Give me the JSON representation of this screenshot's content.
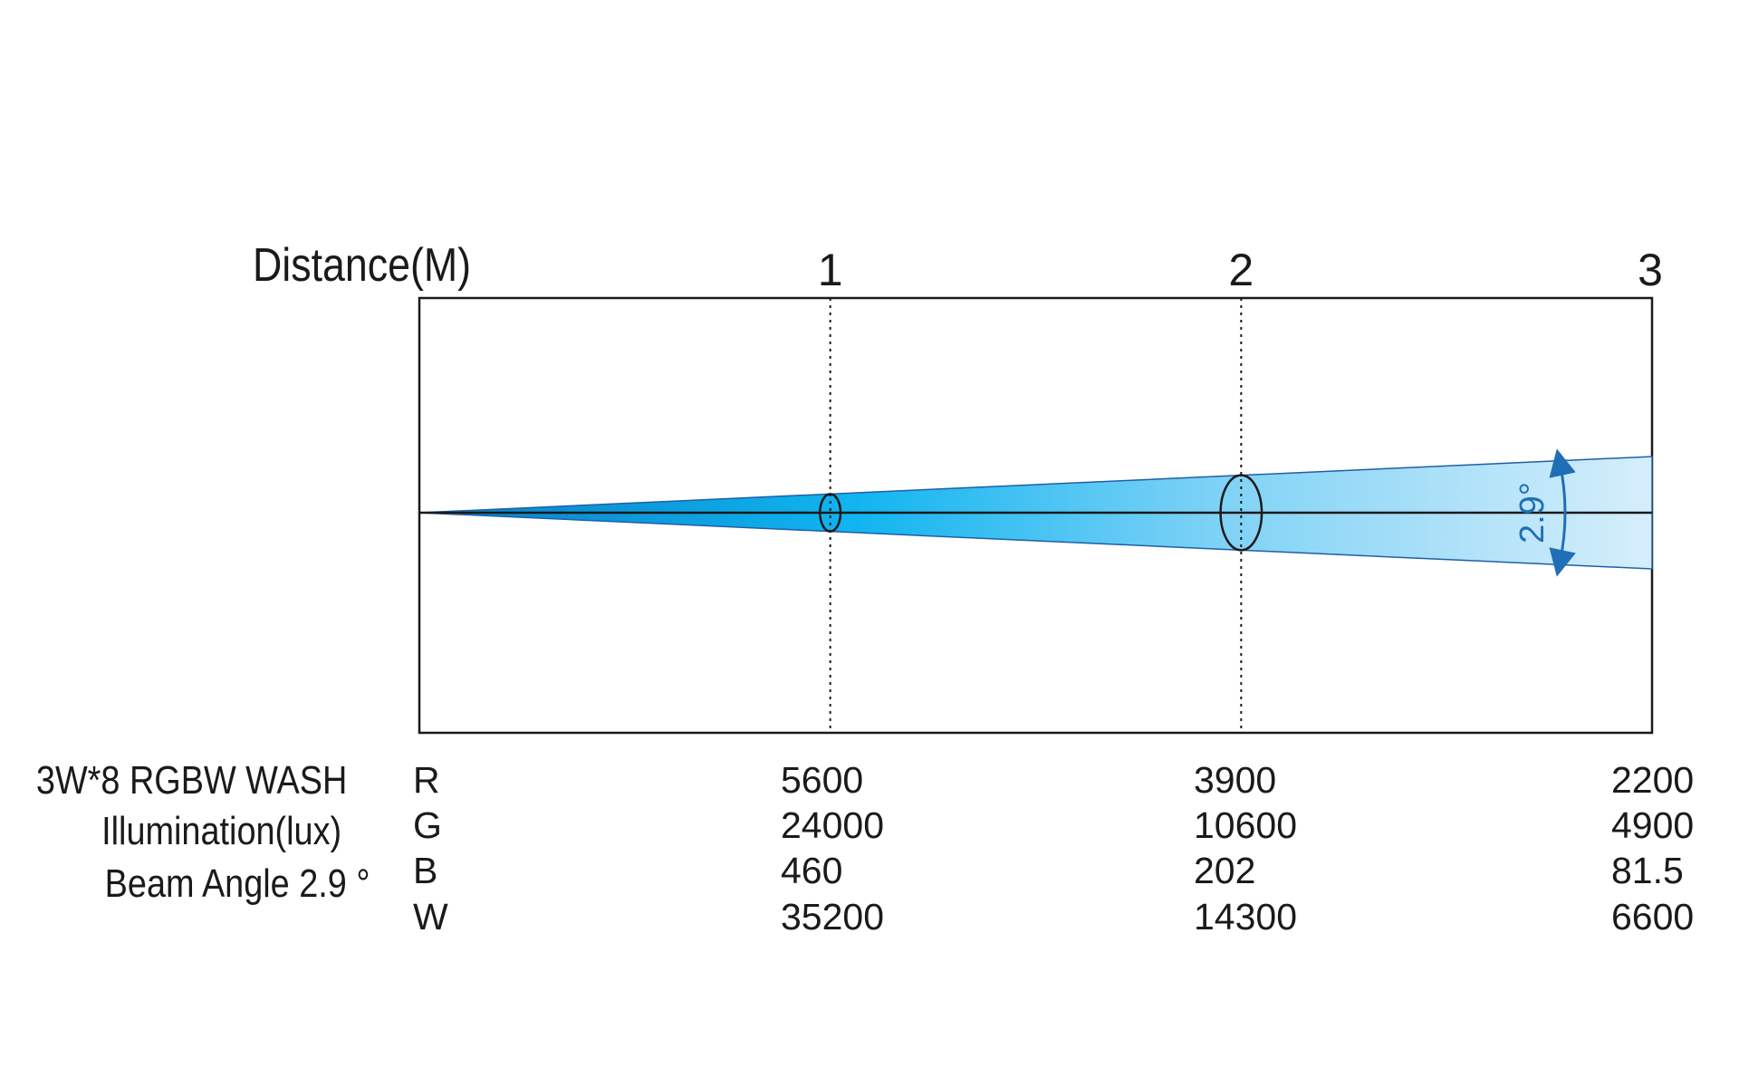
{
  "chart_data": {
    "type": "beam-diagram",
    "x_title": "Distance(M)",
    "x_ticks": [
      "1",
      "2",
      "3"
    ],
    "x_values": [
      1,
      2,
      3
    ],
    "xlim": [
      0,
      3
    ],
    "beam_angle_label": "2.9°",
    "beam_color": "#00aeef",
    "device": {
      "name": "3W*8 RGBW WASH",
      "metric": "Illumination(lux)",
      "beam_angle_text": "Beam Angle 2.9 °"
    },
    "series": [
      {
        "name": "R",
        "values": [
          "5600",
          "3900",
          "2200"
        ]
      },
      {
        "name": "G",
        "values": [
          "24000",
          "10600",
          "4900"
        ]
      },
      {
        "name": "B",
        "values": [
          "460",
          "202",
          "81.5"
        ]
      },
      {
        "name": "W",
        "values": [
          "35200",
          "14300",
          "6600"
        ]
      }
    ]
  }
}
